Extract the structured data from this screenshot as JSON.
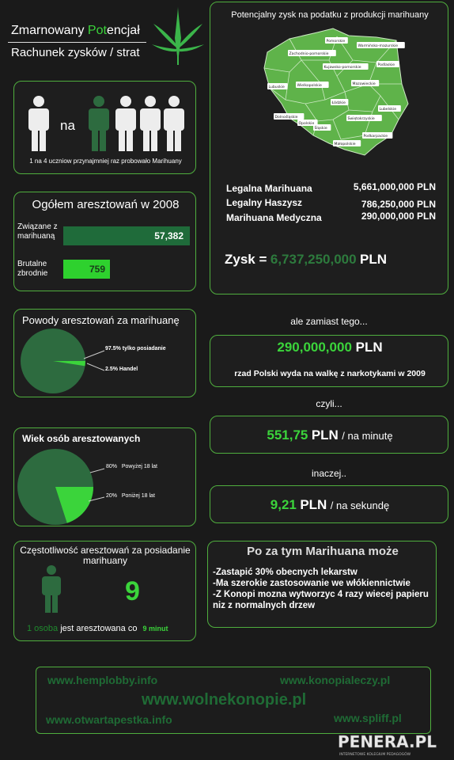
{
  "header": {
    "title_pre": "Zmarnowany ",
    "title_hl": "Pot",
    "title_post": "encjał",
    "subtitle": "Rachunek zysków / strat"
  },
  "students": {
    "na": "na",
    "caption": "1 na 4 uczniow przynajmniej raz probowało Marihuany"
  },
  "arrests": {
    "title": "Ogółem aresztowań w 2008",
    "rows": [
      {
        "label": "Związane z marihuaną",
        "value": "57,382"
      },
      {
        "label": "Brutalne zbrodnie",
        "value": "759"
      }
    ]
  },
  "reasons": {
    "title": "Powody aresztowań za marihuanę",
    "labels": [
      "97.5% tylko posiadanie",
      "2.5% Handel"
    ]
  },
  "ages": {
    "title": "Wiek osób aresztowanych",
    "label1_pct": "80%",
    "label1_text": "Powyżej 18 lat",
    "label2_pct": "20%",
    "label2_text": "Poniżej 18 lat"
  },
  "frequency": {
    "title": "Częstotliwość aresztowań za posiadanie marihuany",
    "number": "9",
    "line_a": "1 osoba",
    "line_b": "jest aresztowana co",
    "line_c": "9 minut"
  },
  "profit": {
    "title": "Potencjalny zysk na podatku z produkcji marihuany",
    "map_regions": [
      "Pomorskie",
      "Warmińsko-mazurskie",
      "Zachodnio-pomorskie",
      "Kujawsko-pomorskie",
      "Podlaskie",
      "Lubuskie",
      "Wielkopolskie",
      "Mazowieckie",
      "Łódzkie",
      "Lubelskie",
      "Dolnośląskie",
      "Opolskie",
      "Śląskie",
      "Świętokrzyskie",
      "Podkarpackie",
      "Małopolskie"
    ],
    "rows": [
      {
        "label": "Legalna Marihuana",
        "value": "5,661,000,000 PLN"
      },
      {
        "label": "Legalny Haszysz",
        "value": "786,250,000 PLN"
      },
      {
        "label": "Marihuana Medyczna",
        "value": "290,000,000 PLN"
      }
    ],
    "total_label": "Zysk =",
    "total_value": "6,737,250,000",
    "total_unit": "PLN"
  },
  "instead": {
    "intro": "ale zamiast tego...",
    "amount": "290,000,000",
    "amount_unit": "PLN",
    "desc": "rzad Polski wyda na walkę z narkotykami w 2009",
    "czyli": "czyli...",
    "per_min_value": "551,75",
    "per_min_unit": "PLN",
    "per_min_text": "/ na minutę",
    "inaczej": "inaczej..",
    "per_sec_value": "9,21",
    "per_sec_unit": "PLN",
    "per_sec_text": "/ na sekundę"
  },
  "benefits": {
    "title": "Po za tym Marihuana może",
    "items": [
      "-Zastapić 30% obecnych lekarstw",
      "-Ma szerokie zastosowanie we włókiennictwie",
      "-Z Konopi mozna wytworzyc 4 razy wiecej papieru niz z normalnych drzew"
    ]
  },
  "links": {
    "l1": "www.hemplobby.info",
    "l2": "www.konopialeczy.pl",
    "l3": "www.wolnekonopie.pl",
    "l4": "www.otwartapestka.info",
    "l5": "www.spliff.pl"
  },
  "watermark": {
    "logo": "PENERA.PL",
    "tagline": "INTERNETOWE KOLEGIUM PEDAGOGÓW"
  },
  "colors": {
    "background": "#1a1a1a",
    "accent": "#3bd43b",
    "dark_green": "#2d6b3f",
    "map_green": "#5fb34a"
  }
}
